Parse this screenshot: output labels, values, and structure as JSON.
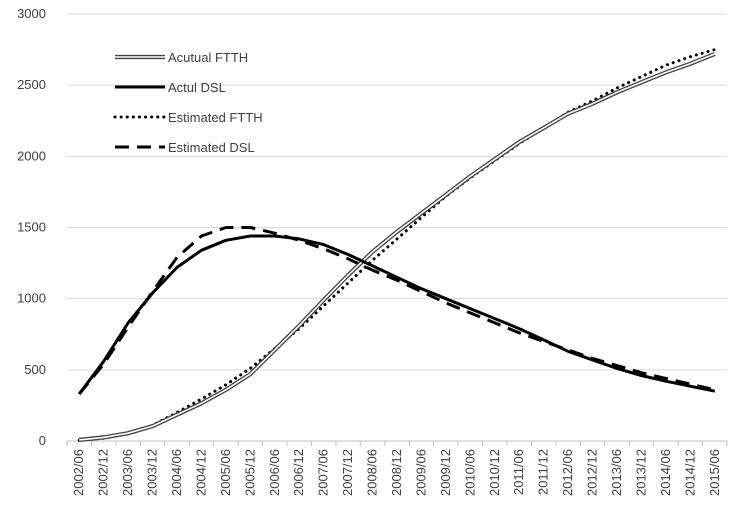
{
  "chart_data": {
    "type": "line",
    "title": "",
    "xlabel": "",
    "ylabel": "",
    "ylim": [
      0,
      3000
    ],
    "yticks": [
      0,
      500,
      1000,
      1500,
      2000,
      2500,
      3000
    ],
    "grid": "horizontal",
    "legend_position": "top-left",
    "x": [
      "2002/06",
      "2002/12",
      "2003/06",
      "2003/12",
      "2004/06",
      "2004/12",
      "2005/06",
      "2005/12",
      "2006/06",
      "2006/12",
      "2007/06",
      "2007/12",
      "2008/06",
      "2008/12",
      "2009/06",
      "2009/12",
      "2010/06",
      "2010/12",
      "2011/06",
      "2011/12",
      "2012/06",
      "2012/12",
      "2013/06",
      "2013/12",
      "2014/06",
      "2014/12",
      "2015/06"
    ],
    "series": [
      {
        "name": "Acutual FTTH",
        "style": "double",
        "color": "#000000",
        "values": [
          8,
          25,
          55,
          105,
          185,
          265,
          360,
          470,
          640,
          810,
          990,
          1165,
          1330,
          1470,
          1600,
          1730,
          1860,
          1980,
          2100,
          2200,
          2300,
          2370,
          2450,
          2520,
          2590,
          2650,
          2720
        ]
      },
      {
        "name": "Actul DSL",
        "style": "solid",
        "color": "#000000",
        "values": [
          330,
          560,
          830,
          1040,
          1220,
          1340,
          1410,
          1440,
          1440,
          1420,
          1380,
          1310,
          1230,
          1150,
          1070,
          1000,
          930,
          860,
          790,
          710,
          630,
          570,
          510,
          460,
          420,
          385,
          350
        ]
      },
      {
        "name": "Estimated FTTH",
        "style": "dotted",
        "color": "#000000",
        "values": [
          5,
          20,
          50,
          110,
          200,
          295,
          395,
          510,
          650,
          790,
          950,
          1110,
          1270,
          1420,
          1570,
          1720,
          1850,
          1970,
          2090,
          2200,
          2310,
          2390,
          2480,
          2560,
          2640,
          2700,
          2750
        ]
      },
      {
        "name": "Estimated DSL",
        "style": "dashed",
        "color": "#000000",
        "values": [
          330,
          540,
          800,
          1050,
          1290,
          1440,
          1500,
          1500,
          1460,
          1410,
          1350,
          1280,
          1200,
          1130,
          1050,
          970,
          900,
          830,
          760,
          700,
          640,
          580,
          530,
          480,
          440,
          400,
          360
        ]
      }
    ]
  }
}
